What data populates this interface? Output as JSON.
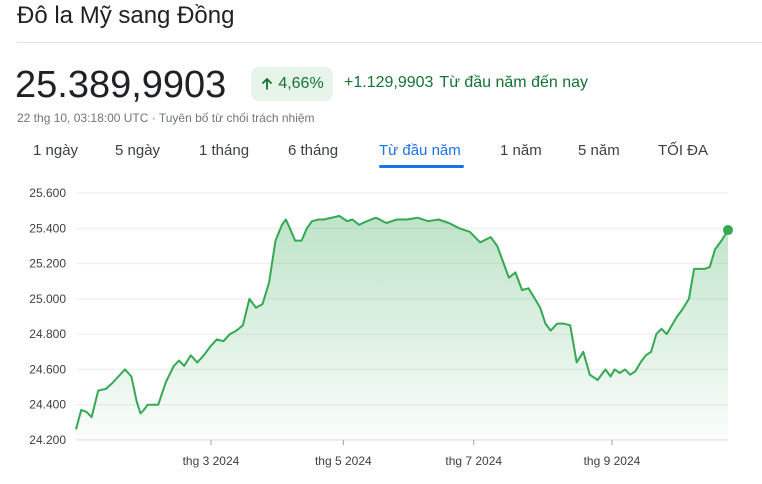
{
  "header": {
    "title": "Đô la Mỹ sang Đồng",
    "price": "25.389,9903",
    "change_percent": "4,66%",
    "change_abs": "+1.129,9903",
    "change_period": "Từ đầu năm đến nay",
    "timestamp": "22 thg 10, 03:18:00 UTC · Tuyên bố từ chối trách nhiệm"
  },
  "tabs": [
    {
      "label": "1 ngày"
    },
    {
      "label": "5 ngày"
    },
    {
      "label": "1 tháng"
    },
    {
      "label": "6 tháng"
    },
    {
      "label": "Từ đầu năm",
      "active": true
    },
    {
      "label": "1 năm"
    },
    {
      "label": "5 năm"
    },
    {
      "label": "TỐI ĐA"
    }
  ],
  "colors": {
    "line": "#34a853",
    "positive_text": "#137333",
    "badge_bg": "#e6f4ea",
    "active_tab": "#1a73e8"
  },
  "icons": {
    "change_arrow": "arrow-up-icon"
  },
  "chart_data": {
    "type": "area",
    "ylim": [
      24200,
      25600
    ],
    "yticks": [
      "24.200",
      "24.400",
      "24.600",
      "24.800",
      "25.000",
      "25.200",
      "25.400",
      "25.600"
    ],
    "xticks": [
      {
        "label": "thg 3 2024",
        "t": 0.207
      },
      {
        "label": "thg 5 2024",
        "t": 0.41
      },
      {
        "label": "thg 7 2024",
        "t": 0.61
      },
      {
        "label": "thg 9 2024",
        "t": 0.822
      }
    ],
    "grid": true,
    "last_value": 25389.9903,
    "series": [
      {
        "t": [
          0,
          0.008,
          0.016,
          0.024,
          0.034,
          0.046,
          0.055,
          0.065,
          0.075,
          0.085,
          0.093,
          0.099,
          0.104,
          0.11,
          0.118,
          0.126,
          0.138,
          0.15,
          0.158,
          0.166,
          0.176,
          0.186,
          0.196,
          0.206,
          0.216,
          0.226,
          0.236,
          0.246,
          0.256,
          0.266,
          0.276,
          0.286,
          0.296,
          0.306,
          0.316,
          0.322,
          0.328,
          0.336,
          0.346,
          0.354,
          0.362,
          0.372,
          0.38,
          0.392,
          0.404,
          0.416,
          0.424,
          0.434,
          0.446,
          0.46,
          0.476,
          0.492,
          0.508,
          0.524,
          0.54,
          0.556,
          0.572,
          0.588,
          0.604,
          0.62,
          0.636,
          0.646,
          0.654,
          0.664,
          0.674,
          0.684,
          0.694,
          0.704,
          0.712,
          0.72,
          0.728,
          0.738,
          0.748,
          0.758,
          0.768,
          0.778,
          0.788,
          0.8,
          0.812,
          0.82,
          0.826,
          0.834,
          0.842,
          0.85,
          0.858,
          0.866,
          0.874,
          0.882,
          0.89,
          0.898,
          0.906,
          0.914,
          0.922,
          0.93,
          0.94,
          0.948,
          0.956,
          0.964,
          0.972,
          0.98,
          0.99,
          1.0
        ],
        "values": [
          24260,
          24370,
          24360,
          24330,
          24480,
          24490,
          24520,
          24560,
          24600,
          24560,
          24420,
          24350,
          24370,
          24400,
          24400,
          24400,
          24530,
          24620,
          24650,
          24620,
          24680,
          24640,
          24680,
          24730,
          24770,
          24760,
          24800,
          24820,
          24850,
          25000,
          24950,
          24970,
          25090,
          25330,
          25420,
          25450,
          25400,
          25330,
          25330,
          25400,
          25440,
          25450,
          25450,
          25460,
          25470,
          25440,
          25450,
          25420,
          25440,
          25460,
          25430,
          25450,
          25450,
          25460,
          25440,
          25450,
          25430,
          25400,
          25380,
          25320,
          25350,
          25300,
          25220,
          25120,
          25150,
          25050,
          25060,
          25000,
          24950,
          24860,
          24820,
          24860,
          24860,
          24850,
          24640,
          24700,
          24570,
          24540,
          24600,
          24560,
          24600,
          24580,
          24600,
          24570,
          24590,
          24640,
          24680,
          24700,
          24800,
          24830,
          24800,
          24850,
          24900,
          24940,
          25000,
          25170,
          25170,
          25170,
          25180,
          25280,
          25330,
          25390
        ]
      }
    ]
  }
}
